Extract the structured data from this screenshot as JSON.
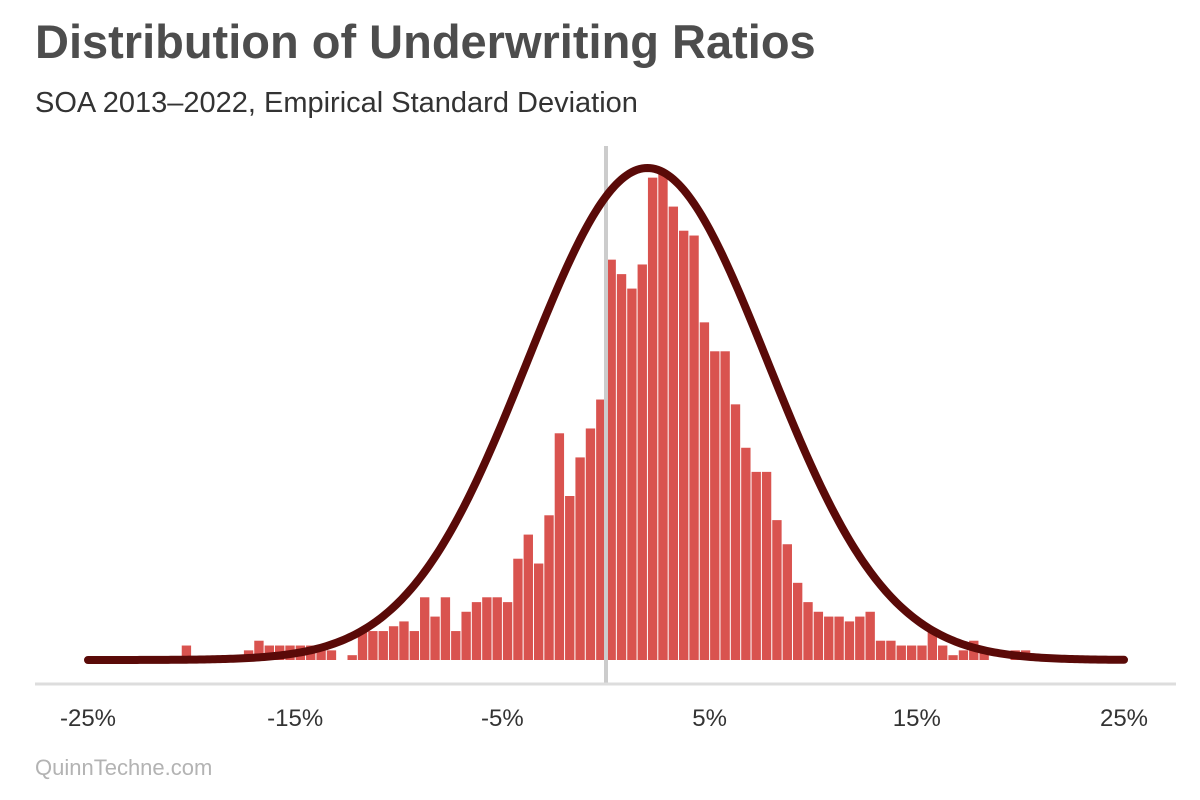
{
  "title": "Distribution of Underwriting Ratios",
  "subtitle": "SOA 2013–2022, Empirical Standard Deviation",
  "footer": "QuinnTechne.com",
  "colors": {
    "bars": "#d9534f",
    "curve": "#5a0a08",
    "zero_line": "#cccccc",
    "axis": "#dddddd"
  },
  "chart_data": {
    "type": "bar",
    "xlim": [
      -25,
      25
    ],
    "x_ticks": [
      -25,
      -15,
      -5,
      5,
      15,
      25
    ],
    "x_tick_labels": [
      "-25%",
      "-15%",
      "-5%",
      "5%",
      "15%",
      "25%"
    ],
    "reference_line_x": 0,
    "grid": false,
    "histogram": {
      "bin_width": 0.5,
      "bins": [
        [
          -20.5,
          3
        ],
        [
          -17.5,
          2
        ],
        [
          -17,
          4
        ],
        [
          -16.5,
          3
        ],
        [
          -16,
          3
        ],
        [
          -15.5,
          3
        ],
        [
          -15,
          3
        ],
        [
          -14.5,
          3
        ],
        [
          -14,
          3
        ],
        [
          -13.5,
          2
        ],
        [
          -12.5,
          1
        ],
        [
          -12,
          6
        ],
        [
          -11.5,
          6
        ],
        [
          -11,
          6
        ],
        [
          -10.5,
          7
        ],
        [
          -10,
          8
        ],
        [
          -9.5,
          6
        ],
        [
          -9,
          13
        ],
        [
          -8.5,
          9
        ],
        [
          -8,
          13
        ],
        [
          -7.5,
          6
        ],
        [
          -7,
          10
        ],
        [
          -6.5,
          12
        ],
        [
          -6,
          13
        ],
        [
          -5.5,
          13
        ],
        [
          -5,
          12
        ],
        [
          -4.5,
          21
        ],
        [
          -4,
          26
        ],
        [
          -3.5,
          20
        ],
        [
          -3,
          30
        ],
        [
          -2.5,
          47
        ],
        [
          -2,
          34
        ],
        [
          -1.5,
          42
        ],
        [
          -1,
          48
        ],
        [
          -0.5,
          54
        ],
        [
          0,
          83
        ],
        [
          0.5,
          80
        ],
        [
          1,
          77
        ],
        [
          1.5,
          82
        ],
        [
          2,
          100
        ],
        [
          2.5,
          101
        ],
        [
          3,
          94
        ],
        [
          3.5,
          89
        ],
        [
          4,
          88
        ],
        [
          4.5,
          70
        ],
        [
          5,
          64
        ],
        [
          5.5,
          64
        ],
        [
          6,
          53
        ],
        [
          6.5,
          44
        ],
        [
          7,
          39
        ],
        [
          7.5,
          39
        ],
        [
          8,
          29
        ],
        [
          8.5,
          24
        ],
        [
          9,
          16
        ],
        [
          9.5,
          12
        ],
        [
          10,
          10
        ],
        [
          10.5,
          9
        ],
        [
          11,
          9
        ],
        [
          11.5,
          8
        ],
        [
          12,
          9
        ],
        [
          12.5,
          10
        ],
        [
          13,
          4
        ],
        [
          13.5,
          4
        ],
        [
          14,
          3
        ],
        [
          14.5,
          3
        ],
        [
          15,
          3
        ],
        [
          15.5,
          6
        ],
        [
          16,
          3
        ],
        [
          16.5,
          1
        ],
        [
          17,
          2
        ],
        [
          17.5,
          4
        ],
        [
          18,
          2
        ],
        [
          19.5,
          2
        ],
        [
          20,
          2
        ]
      ]
    },
    "normal_curve": {
      "mean": 2,
      "sd": 5.8,
      "peak": 102
    }
  }
}
